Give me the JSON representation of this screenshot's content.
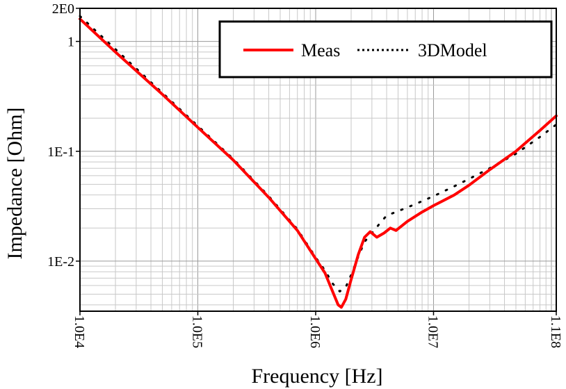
{
  "chart_data": {
    "type": "line",
    "xlabel": "Frequency [Hz]",
    "ylabel": "Impedance [Ohm]",
    "x_scale": "log",
    "y_scale": "log",
    "xlim": [
      10000,
      110000000
    ],
    "ylim": [
      0.0035,
      2
    ],
    "grid": true,
    "legend_position": "top-right",
    "x_ticks": [
      {
        "value": 10000,
        "label": "1.0E4"
      },
      {
        "value": 100000,
        "label": "1.0E5"
      },
      {
        "value": 1000000,
        "label": "1.0E6"
      },
      {
        "value": 10000000,
        "label": "1.0E7"
      },
      {
        "value": 110000000,
        "label": "1.1E8"
      }
    ],
    "y_ticks": [
      {
        "value": 2,
        "label": "2E0"
      },
      {
        "value": 1,
        "label": "1"
      },
      {
        "value": 0.1,
        "label": "1E-1"
      },
      {
        "value": 0.01,
        "label": "1E-2"
      }
    ],
    "series": [
      {
        "name": "Meas",
        "color": "#ff0000",
        "style": "solid",
        "points": [
          [
            10000,
            1.6
          ],
          [
            20000,
            0.8
          ],
          [
            50000,
            0.33
          ],
          [
            100000,
            0.165
          ],
          [
            200000,
            0.083
          ],
          [
            400000,
            0.038
          ],
          [
            700000,
            0.019
          ],
          [
            1000000,
            0.0105
          ],
          [
            1200000,
            0.0078
          ],
          [
            1400000,
            0.0052
          ],
          [
            1550000,
            0.004
          ],
          [
            1650000,
            0.0038
          ],
          [
            1800000,
            0.0045
          ],
          [
            2000000,
            0.0068
          ],
          [
            2300000,
            0.0115
          ],
          [
            2600000,
            0.0165
          ],
          [
            2900000,
            0.0185
          ],
          [
            3300000,
            0.0165
          ],
          [
            3800000,
            0.018
          ],
          [
            4300000,
            0.02
          ],
          [
            4800000,
            0.019
          ],
          [
            6000000,
            0.023
          ],
          [
            8000000,
            0.028
          ],
          [
            10000000,
            0.032
          ],
          [
            15000000,
            0.04
          ],
          [
            20000000,
            0.049
          ],
          [
            30000000,
            0.068
          ],
          [
            50000000,
            0.1
          ],
          [
            80000000,
            0.155
          ],
          [
            110000000,
            0.21
          ]
        ]
      },
      {
        "name": "3DModel",
        "color": "#000000",
        "style": "dotted",
        "points": [
          [
            10000,
            1.7
          ],
          [
            20000,
            0.85
          ],
          [
            50000,
            0.34
          ],
          [
            100000,
            0.17
          ],
          [
            200000,
            0.085
          ],
          [
            400000,
            0.039
          ],
          [
            700000,
            0.0195
          ],
          [
            1000000,
            0.0108
          ],
          [
            1200000,
            0.0082
          ],
          [
            1400000,
            0.0062
          ],
          [
            1600000,
            0.0053
          ],
          [
            1800000,
            0.0058
          ],
          [
            2000000,
            0.0075
          ],
          [
            2300000,
            0.011
          ],
          [
            2600000,
            0.015
          ],
          [
            3000000,
            0.018
          ],
          [
            3500000,
            0.022
          ],
          [
            4000000,
            0.026
          ],
          [
            5000000,
            0.0285
          ],
          [
            7000000,
            0.033
          ],
          [
            10000000,
            0.039
          ],
          [
            15000000,
            0.048
          ],
          [
            20000000,
            0.056
          ],
          [
            30000000,
            0.07
          ],
          [
            50000000,
            0.095
          ],
          [
            80000000,
            0.135
          ],
          [
            110000000,
            0.175
          ]
        ]
      }
    ]
  }
}
